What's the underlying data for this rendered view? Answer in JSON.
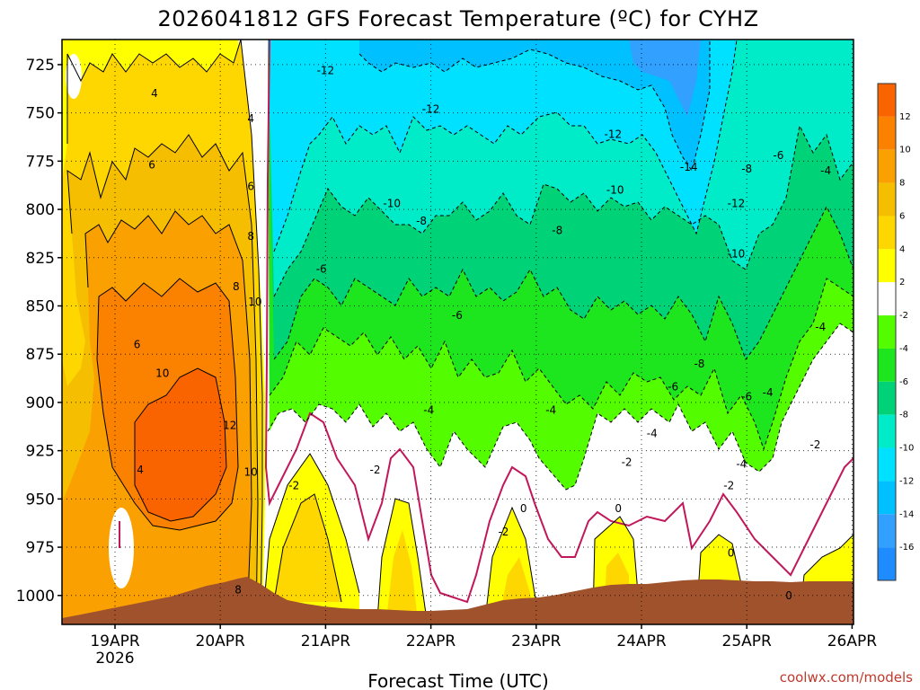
{
  "chart_data": {
    "type": "heatmap",
    "title": "2026041812 GFS Forecast Temperature (ºC) for CYHZ",
    "xlabel": "Forecast Time (UTC)",
    "ylabel": "",
    "x_ticks": [
      "19APR",
      "20APR",
      "21APR",
      "22APR",
      "23APR",
      "24APR",
      "25APR",
      "26APR"
    ],
    "x_year": "2026",
    "y_ticks": [
      725,
      750,
      775,
      800,
      825,
      850,
      875,
      900,
      925,
      950,
      975,
      1000
    ],
    "ylim": [
      1015,
      712
    ],
    "units": "ºC",
    "colorbar": {
      "levels": [
        12,
        10,
        8,
        6,
        4,
        2,
        -2,
        -4,
        -6,
        -8,
        -10,
        -12,
        -14,
        -16
      ],
      "colors": [
        "#fa6400",
        "#fa8200",
        "#faa000",
        "#f5be00",
        "#ffd700",
        "#ffff00",
        "#ffffff",
        "#54fc00",
        "#1ee61e",
        "#00d278",
        "#00ebc8",
        "#00e1ff",
        "#00c0ff",
        "#32a0ff",
        "#1e8cff"
      ]
    },
    "contour_labels": [
      {
        "t": "4",
        "x": 0.375,
        "p": 740
      },
      {
        "t": "6",
        "x": 0.35,
        "p": 777
      },
      {
        "t": "6",
        "x": 0.21,
        "p": 870
      },
      {
        "t": "4",
        "x": 0.24,
        "p": 935
      },
      {
        "t": "10",
        "x": 0.45,
        "p": 885
      },
      {
        "t": "8",
        "x": 1.15,
        "p": 840
      },
      {
        "t": "10",
        "x": 1.33,
        "p": 848
      },
      {
        "t": "12",
        "x": 1.09,
        "p": 912
      },
      {
        "t": "4",
        "x": 1.29,
        "p": 753
      },
      {
        "t": "6",
        "x": 1.29,
        "p": 788
      },
      {
        "t": "8",
        "x": 1.29,
        "p": 814
      },
      {
        "t": "10",
        "x": 1.29,
        "p": 936
      },
      {
        "t": "8",
        "x": 1.17,
        "p": 997
      },
      {
        "t": "-12",
        "x": 2.0,
        "p": 728
      },
      {
        "t": "-12",
        "x": 3.0,
        "p": 748
      },
      {
        "t": "-12",
        "x": 4.73,
        "p": 761
      },
      {
        "t": "-14",
        "x": 5.45,
        "p": 778
      },
      {
        "t": "-10",
        "x": 2.63,
        "p": 797
      },
      {
        "t": "-10",
        "x": 4.75,
        "p": 790
      },
      {
        "t": "-12",
        "x": 5.9,
        "p": 797
      },
      {
        "t": "-8",
        "x": 2.91,
        "p": 806
      },
      {
        "t": "-8",
        "x": 4.2,
        "p": 811
      },
      {
        "t": "-8",
        "x": 6.0,
        "p": 779
      },
      {
        "t": "-6",
        "x": 6.3,
        "p": 772
      },
      {
        "t": "-4",
        "x": 6.75,
        "p": 780
      },
      {
        "t": "-10",
        "x": 5.9,
        "p": 823
      },
      {
        "t": "-6",
        "x": 1.96,
        "p": 831
      },
      {
        "t": "-6",
        "x": 3.25,
        "p": 855
      },
      {
        "t": "-8",
        "x": 5.55,
        "p": 880
      },
      {
        "t": "-6",
        "x": 5.3,
        "p": 892
      },
      {
        "t": "-6",
        "x": 6.0,
        "p": 897
      },
      {
        "t": "-4",
        "x": 6.2,
        "p": 895
      },
      {
        "t": "-4",
        "x": 6.7,
        "p": 861
      },
      {
        "t": "-4",
        "x": 2.98,
        "p": 904
      },
      {
        "t": "-4",
        "x": 4.14,
        "p": 904
      },
      {
        "t": "-4",
        "x": 5.1,
        "p": 916
      },
      {
        "t": "-4",
        "x": 5.95,
        "p": 932
      },
      {
        "t": "-2",
        "x": 6.65,
        "p": 922
      },
      {
        "t": "-2",
        "x": 1.7,
        "p": 943
      },
      {
        "t": "-2",
        "x": 2.47,
        "p": 935
      },
      {
        "t": "-2",
        "x": 3.69,
        "p": 967
      },
      {
        "t": "-2",
        "x": 4.86,
        "p": 931
      },
      {
        "t": "-2",
        "x": 5.83,
        "p": 943
      },
      {
        "t": "0",
        "x": 3.88,
        "p": 955
      },
      {
        "t": "0",
        "x": 4.78,
        "p": 955
      },
      {
        "t": "0",
        "x": 5.85,
        "p": 978
      },
      {
        "t": "0",
        "x": 6.4,
        "p": 1000
      }
    ],
    "credit": "coolwx.com/models"
  }
}
